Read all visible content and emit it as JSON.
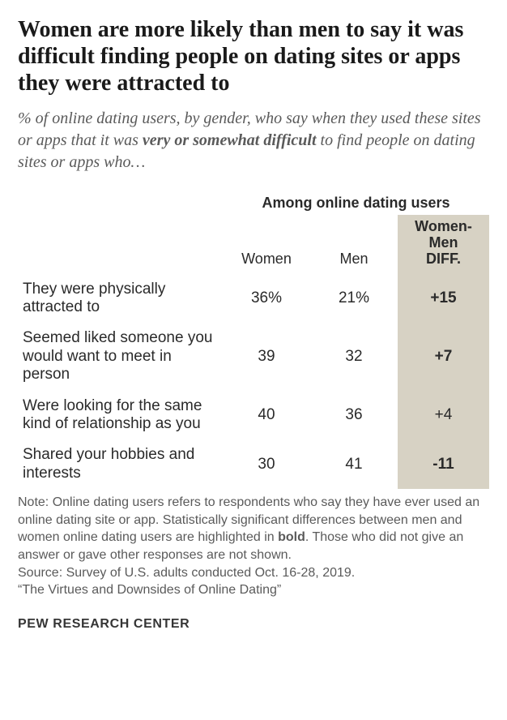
{
  "title": "Women are more likely than men to say it was difficult finding people on dating sites or apps they were attracted to",
  "subtitle_prefix": "% of online dating users, by gender, who say when they used these sites or apps that it was ",
  "subtitle_bold": "very or somewhat difficult",
  "subtitle_suffix": " to find people on dating sites or apps who…",
  "super_header": "Among online dating users",
  "columns": {
    "women": "Women",
    "men": "Men",
    "diff_line1": "Women-",
    "diff_line2": "Men",
    "diff_line3": "DIFF."
  },
  "rows": [
    {
      "label": "They were physically attracted to",
      "women": "36%",
      "men": "21%",
      "diff": "+15",
      "diff_bold": true
    },
    {
      "label": "Seemed liked someone you would want to meet in person",
      "women": "39",
      "men": "32",
      "diff": "+7",
      "diff_bold": true
    },
    {
      "label": "Were looking for the same kind of relationship as you",
      "women": "40",
      "men": "36",
      "diff": "+4",
      "diff_bold": false
    },
    {
      "label": "Shared your hobbies and interests",
      "women": "30",
      "men": "41",
      "diff": "-11",
      "diff_bold": true
    }
  ],
  "note_prefix": "Note: Online dating users refers to respondents who say they have ever used an online dating site or app. Statistically significant differences between men and women online dating users are highlighted in ",
  "note_bold": "bold",
  "note_suffix": ". Those who did not give an answer or gave other responses are not shown.",
  "source": "Source: Survey of U.S. adults conducted Oct. 16-28, 2019.",
  "study": "“The Virtues and Downsides of Online Dating”",
  "brand": "PEW RESEARCH CENTER",
  "style": {
    "diff_bg": "#d7d2c4",
    "text_color": "#2a2a2a",
    "subtext_color": "#5a5a5a",
    "bg_color": "#ffffff",
    "title_fontsize": 28,
    "subtitle_fontsize": 20,
    "cell_fontsize": 19,
    "header_fontsize": 18,
    "note_fontsize": 16,
    "col_widths": {
      "label": 253,
      "women": 108,
      "men": 108,
      "diff": 113
    }
  }
}
